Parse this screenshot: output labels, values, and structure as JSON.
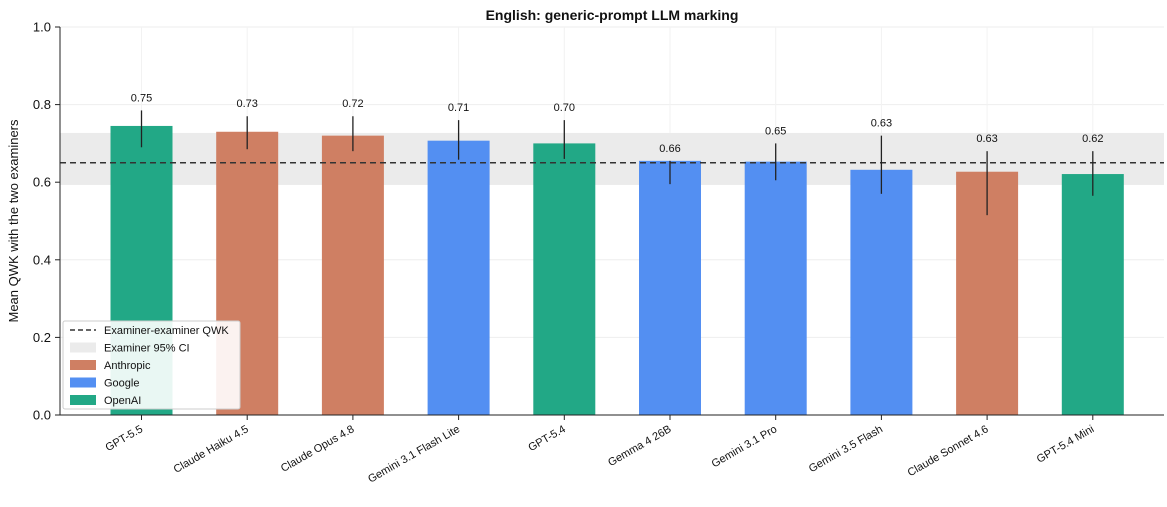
{
  "chart_data": {
    "type": "bar",
    "title": "English: generic-prompt LLM marking",
    "xlabel": "",
    "ylabel": "Mean QWK with the two examiners",
    "ylim": [
      0,
      1.0
    ],
    "yticks": [
      "0.0",
      "0.2",
      "0.4",
      "0.6",
      "0.8",
      "1.0"
    ],
    "grid": true,
    "legend_position": "lower-left",
    "categories": [
      "GPT-5.5",
      "Claude Haiku 4.5",
      "Claude Opus 4.8",
      "Gemini 3.1 Flash Lite",
      "GPT-5.4",
      "Gemma 4 26B",
      "Gemini 3.1 Pro",
      "Gemini 3.5 Flash",
      "Claude Sonnet 4.6",
      "GPT-5.4 Mini"
    ],
    "values": [
      0.745,
      0.73,
      0.72,
      0.707,
      0.7,
      0.655,
      0.653,
      0.632,
      0.627,
      0.621
    ],
    "data_labels": [
      "0.75",
      "0.73",
      "0.72",
      "0.71",
      "0.70",
      "0.66",
      "0.65",
      "0.63",
      "0.63",
      "0.62"
    ],
    "error_low": [
      0.69,
      0.685,
      0.68,
      0.658,
      0.66,
      0.595,
      0.605,
      0.57,
      0.515,
      0.565
    ],
    "error_high": [
      0.785,
      0.77,
      0.77,
      0.76,
      0.76,
      0.655,
      0.7,
      0.72,
      0.68,
      0.68
    ],
    "provider": [
      "OpenAI",
      "Anthropic",
      "Anthropic",
      "Google",
      "OpenAI",
      "Google",
      "Google",
      "Google",
      "Anthropic",
      "OpenAI"
    ],
    "reference_line": {
      "label": "Examiner-examiner QWK",
      "value": 0.65
    },
    "reference_band": {
      "label": "Examiner 95% CI",
      "low": 0.593,
      "high": 0.727
    },
    "legend": [
      {
        "label": "Examiner-examiner QWK",
        "kind": "dashed-line"
      },
      {
        "label": "Examiner 95% CI",
        "kind": "band"
      },
      {
        "label": "Anthropic",
        "kind": "patch"
      },
      {
        "label": "Google",
        "kind": "patch"
      },
      {
        "label": "OpenAI",
        "kind": "patch"
      }
    ],
    "colors": {
      "Anthropic": "#cf7f63",
      "Google": "#538ff2",
      "OpenAI": "#22a886",
      "band": "#ebebeb",
      "reference": "#333333"
    }
  }
}
